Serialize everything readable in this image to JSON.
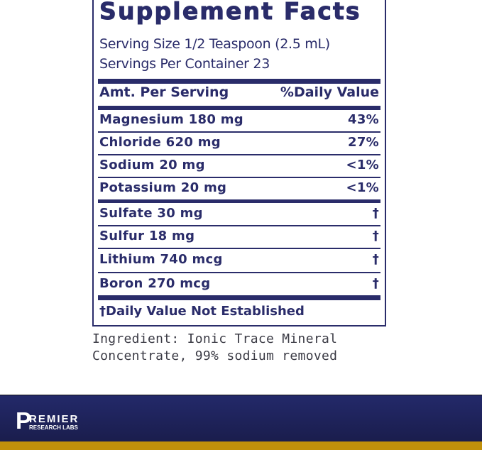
{
  "panel": {
    "title": "Supplement Facts",
    "serving_size": "Serving Size 1/2 Teaspoon (2.5 mL)",
    "servings_per_container": "Servings Per Container 23",
    "header": {
      "amount": "Amt. Per Serving",
      "dv": "%Daily Value"
    },
    "rows": [
      {
        "name": "Magnesium  180 mg",
        "dv": "43%"
      },
      {
        "name": "Chloride  620 mg",
        "dv": "27%"
      },
      {
        "name": "Sodium  20 mg",
        "dv": "<1%"
      },
      {
        "name": "Potassium  20 mg",
        "dv": "<1%"
      },
      {
        "name": "Sulfate 30 mg",
        "dv": "†"
      },
      {
        "name": "Sulfur  18 mg",
        "dv": "†"
      },
      {
        "name": "Lithium  740 mcg",
        "dv": "†"
      },
      {
        "name": "Boron  270 mcg",
        "dv": "†"
      }
    ],
    "footnote": "†Daily Value Not Established"
  },
  "ingredients": {
    "line1": "Ingredient: Ionic Trace Mineral",
    "line2": "Concentrate, 99% sodium removed"
  },
  "brand": {
    "letter": "P",
    "name": "REMIER",
    "sub": "RESEARCH LABS",
    "colors": {
      "navy": "#23296a",
      "gold": "#c0900a"
    }
  }
}
